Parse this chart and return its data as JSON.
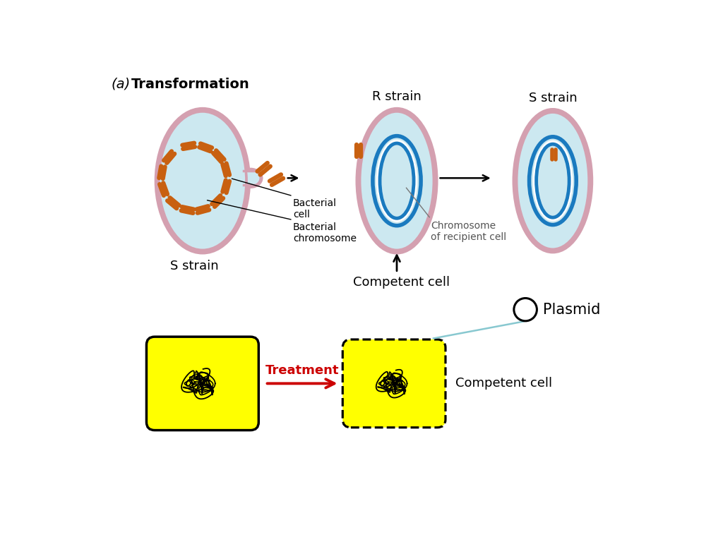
{
  "title_italic": "(a)",
  "title_bold": "Transformation",
  "s_strain_label_left": "S strain",
  "r_strain_label": "R strain",
  "s_strain_label_right": "S strain",
  "bacterial_cell_label": "Bacterial\ncell",
  "bacterial_chrom_label": "Bacterial\nchromosome",
  "chromosome_recipient_label": "Chromosome\nof recipient cell",
  "competent_cell_label": "Competent cell",
  "plasmid_label": "Plasmid",
  "competent_cell_label2": "Competent cell",
  "treatment_label": "Treatment",
  "cell_fill_color": "#cce8f0",
  "cell_border_pink": "#d4a0b0",
  "chromosome_blue": "#1a7abf",
  "dna_orange": "#c86010",
  "yellow_fill": "#ffff00",
  "red_arrow_color": "#cc0000",
  "light_blue_line": "#88c8d0",
  "black": "#000000",
  "white": "#ffffff"
}
